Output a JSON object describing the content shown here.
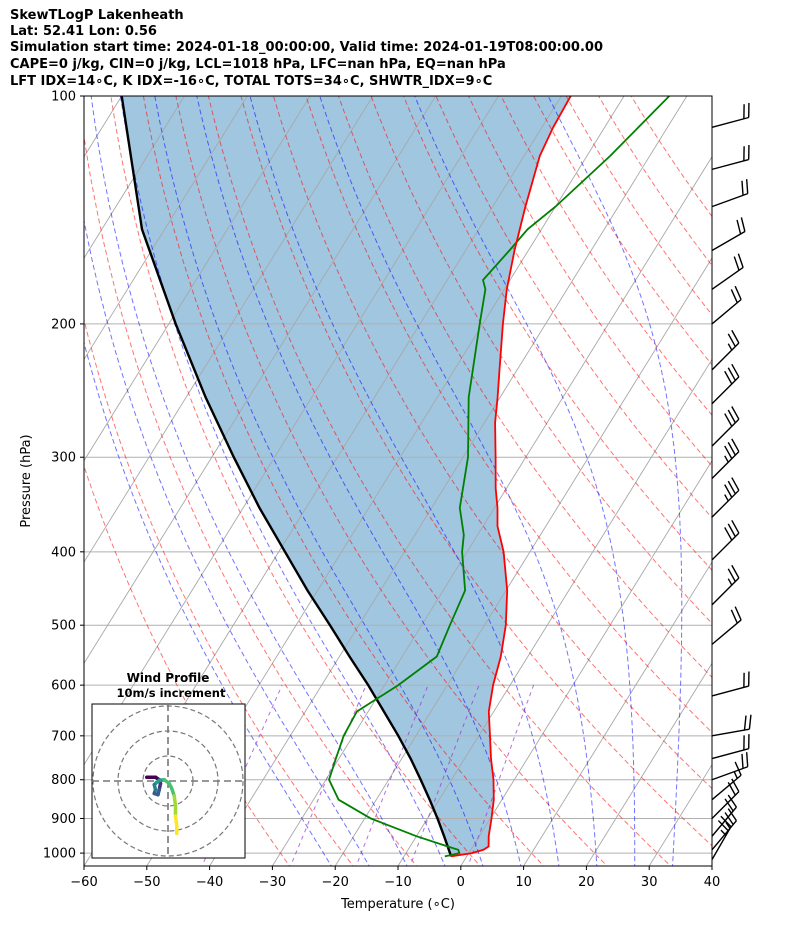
{
  "header": {
    "line1": "SkewTLogP Lakenheath",
    "line2": "Lat: 52.41   Lon: 0.56",
    "line3": "Simulation start time: 2024-01-18_00:00:00, Valid time: 2024-01-19T08:00:00.00",
    "line4": "CAPE=0 j/kg, CIN=0 j/kg, LCL=1018 hPa, LFC=nan hPa, EQ=nan hPa",
    "line5": "LFT IDX=14∘C, K IDX=-16∘C, TOTAL TOTS=34∘C, SHWTR_IDX=9∘C"
  },
  "chart_data": {
    "type": "line",
    "subtype": "skew-T log-P diagram",
    "xlabel": "Temperature (∘C)",
    "ylabel": "Pressure (hPa)",
    "xlim": [
      -60,
      40
    ],
    "ylim": [
      1040,
      100
    ],
    "x_ticks": [
      -60,
      -50,
      -40,
      -30,
      -20,
      -10,
      0,
      10,
      20,
      30,
      40
    ],
    "x_tick_labels": [
      "−60",
      "−50",
      "−40",
      "−30",
      "−20",
      "−10",
      "0",
      "10",
      "20",
      "30",
      "40"
    ],
    "y_ticks": [
      1000,
      900,
      800,
      700,
      600,
      500,
      400,
      300,
      200,
      100
    ],
    "y_tick_labels": [
      "1000",
      "900",
      "800",
      "700",
      "600",
      "500",
      "400",
      "300",
      "200",
      "100"
    ],
    "series": [
      {
        "name": "Temperature",
        "color": "#ff0000",
        "points": [
          [
            1010,
            -2.5
          ],
          [
            1000,
            0.5
          ],
          [
            990,
            2.0
          ],
          [
            980,
            2.5
          ],
          [
            950,
            1.5
          ],
          [
            900,
            0.2
          ],
          [
            850,
            -1.3
          ],
          [
            800,
            -3.3
          ],
          [
            750,
            -5.8
          ],
          [
            700,
            -8.2
          ],
          [
            650,
            -10.8
          ],
          [
            600,
            -12.7
          ],
          [
            550,
            -14.3
          ],
          [
            500,
            -16.6
          ],
          [
            450,
            -19.8
          ],
          [
            400,
            -24.2
          ],
          [
            370,
            -27.7
          ],
          [
            350,
            -29.5
          ],
          [
            330,
            -31.7
          ],
          [
            300,
            -34.8
          ],
          [
            270,
            -38.3
          ],
          [
            250,
            -40.4
          ],
          [
            230,
            -42.8
          ],
          [
            200,
            -46.8
          ],
          [
            180,
            -49.6
          ],
          [
            160,
            -52.2
          ],
          [
            140,
            -54.8
          ],
          [
            120,
            -57.5
          ],
          [
            110,
            -58.2
          ],
          [
            100,
            -58.5
          ]
        ]
      },
      {
        "name": "Dewpoint",
        "color": "#008000",
        "points": [
          [
            1010,
            -3.5
          ],
          [
            1000,
            -1.5
          ],
          [
            990,
            -2.0
          ],
          [
            980,
            -4.0
          ],
          [
            950,
            -10.0
          ],
          [
            900,
            -19.0
          ],
          [
            850,
            -26.0
          ],
          [
            800,
            -29.5
          ],
          [
            750,
            -30.5
          ],
          [
            700,
            -31.5
          ],
          [
            650,
            -31.8
          ],
          [
            600,
            -27.8
          ],
          [
            550,
            -24.5
          ],
          [
            500,
            -25.5
          ],
          [
            450,
            -26.5
          ],
          [
            400,
            -30.8
          ],
          [
            380,
            -32.2
          ],
          [
            350,
            -35.5
          ],
          [
            300,
            -39.2
          ],
          [
            250,
            -45.0
          ],
          [
            200,
            -50.5
          ],
          [
            180,
            -53.0
          ],
          [
            175,
            -54.3
          ],
          [
            160,
            -53.0
          ],
          [
            150,
            -52.2
          ],
          [
            140,
            -50.0
          ],
          [
            120,
            -46.3
          ],
          [
            100,
            -42.8
          ]
        ]
      },
      {
        "name": "Parcel profile",
        "color": "#000000",
        "points": [
          [
            1010,
            -2.5
          ],
          [
            1000,
            -3.0
          ],
          [
            950,
            -5.6
          ],
          [
            900,
            -8.4
          ],
          [
            850,
            -11.5
          ],
          [
            800,
            -14.9
          ],
          [
            750,
            -18.6
          ],
          [
            700,
            -22.8
          ],
          [
            650,
            -27.5
          ],
          [
            600,
            -32.6
          ],
          [
            550,
            -38.4
          ],
          [
            500,
            -44.6
          ],
          [
            450,
            -51.6
          ],
          [
            400,
            -59.0
          ],
          [
            350,
            -67.4
          ],
          [
            300,
            -76.5
          ],
          [
            250,
            -86.9
          ],
          [
            200,
            -98.9
          ],
          [
            150,
            -113.6
          ],
          [
            100,
            -130.0
          ]
        ]
      }
    ],
    "shading": "region between temperature and parcel profile (light blue)",
    "wind_barbs": [
      {
        "p": 1020,
        "dir": 210,
        "kts": 25
      },
      {
        "p": 990,
        "dir": 220,
        "kts": 25
      },
      {
        "p": 950,
        "dir": 220,
        "kts": 20
      },
      {
        "p": 900,
        "dir": 225,
        "kts": 20
      },
      {
        "p": 850,
        "dir": 230,
        "kts": 15
      },
      {
        "p": 800,
        "dir": 250,
        "kts": 20
      },
      {
        "p": 750,
        "dir": 255,
        "kts": 20
      },
      {
        "p": 700,
        "dir": 260,
        "kts": 20
      },
      {
        "p": 620,
        "dir": 255,
        "kts": 20
      },
      {
        "p": 530,
        "dir": 230,
        "kts": 20
      },
      {
        "p": 470,
        "dir": 225,
        "kts": 25
      },
      {
        "p": 410,
        "dir": 225,
        "kts": 30
      },
      {
        "p": 360,
        "dir": 225,
        "kts": 35
      },
      {
        "p": 320,
        "dir": 225,
        "kts": 35
      },
      {
        "p": 290,
        "dir": 225,
        "kts": 30
      },
      {
        "p": 255,
        "dir": 225,
        "kts": 30
      },
      {
        "p": 230,
        "dir": 225,
        "kts": 25
      },
      {
        "p": 200,
        "dir": 230,
        "kts": 20
      },
      {
        "p": 180,
        "dir": 235,
        "kts": 20
      },
      {
        "p": 160,
        "dir": 240,
        "kts": 20
      },
      {
        "p": 140,
        "dir": 250,
        "kts": 20
      },
      {
        "p": 125,
        "dir": 255,
        "kts": 20
      },
      {
        "p": 110,
        "dir": 255,
        "kts": 20
      }
    ],
    "hodograph": {
      "title": "Wind Profile",
      "subtitle": "10m/s increment",
      "ring_speeds_ms": [
        10,
        20,
        30
      ],
      "points_uv": [
        [
          3.5,
          -21.0
        ],
        [
          3.5,
          -18.0
        ],
        [
          3.0,
          -14.0
        ],
        [
          3.0,
          -10.0
        ],
        [
          2.5,
          -6.0
        ],
        [
          1.5,
          -3.0
        ],
        [
          0.5,
          -1.0
        ],
        [
          -1.5,
          0.5
        ],
        [
          -3.5,
          0.2
        ],
        [
          -4.5,
          -0.5
        ],
        [
          -5.5,
          -1.5
        ],
        [
          -5.0,
          -3.5
        ],
        [
          -5.5,
          -5.0
        ],
        [
          -4.0,
          -5.5
        ],
        [
          -3.5,
          -3.5
        ],
        [
          -3.0,
          -1.0
        ],
        [
          -3.5,
          0.5
        ],
        [
          -5.0,
          1.5
        ],
        [
          -6.5,
          1.5
        ],
        [
          -8.5,
          1.5
        ]
      ]
    }
  }
}
